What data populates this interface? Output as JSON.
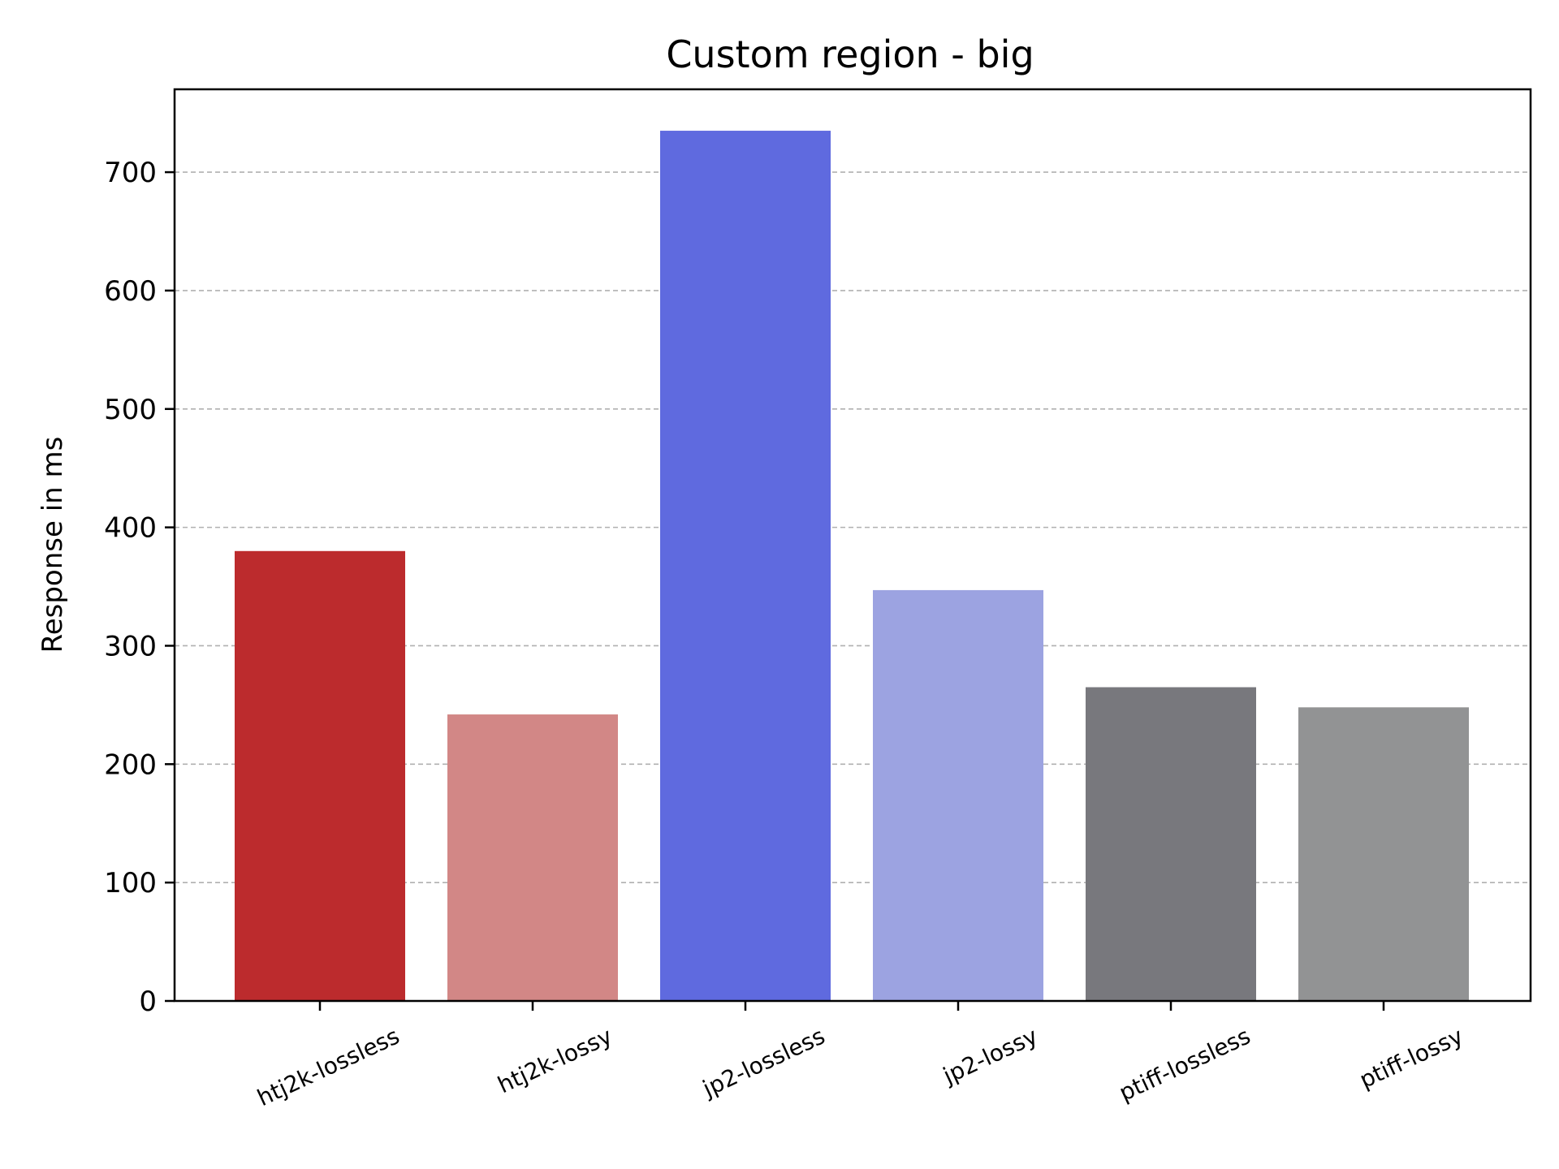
{
  "chart_data": {
    "type": "bar",
    "title": "Custom region - big",
    "xlabel": "",
    "ylabel": "Response in ms",
    "ylim": [
      0,
      770
    ],
    "yticks": [
      0,
      100,
      200,
      300,
      400,
      500,
      600,
      700
    ],
    "grid": "horizontal dashed",
    "categories": [
      "htj2k-lossless",
      "htj2k-lossy",
      "jp2-lossless",
      "jp2-lossy",
      "ptiff-lossless",
      "ptiff-lossy"
    ],
    "values": [
      380,
      242,
      735,
      347,
      265,
      248
    ],
    "colors": [
      "#bc2b2d",
      "#d28786",
      "#5f6adf",
      "#9ca3e1",
      "#78787d",
      "#929394"
    ]
  }
}
